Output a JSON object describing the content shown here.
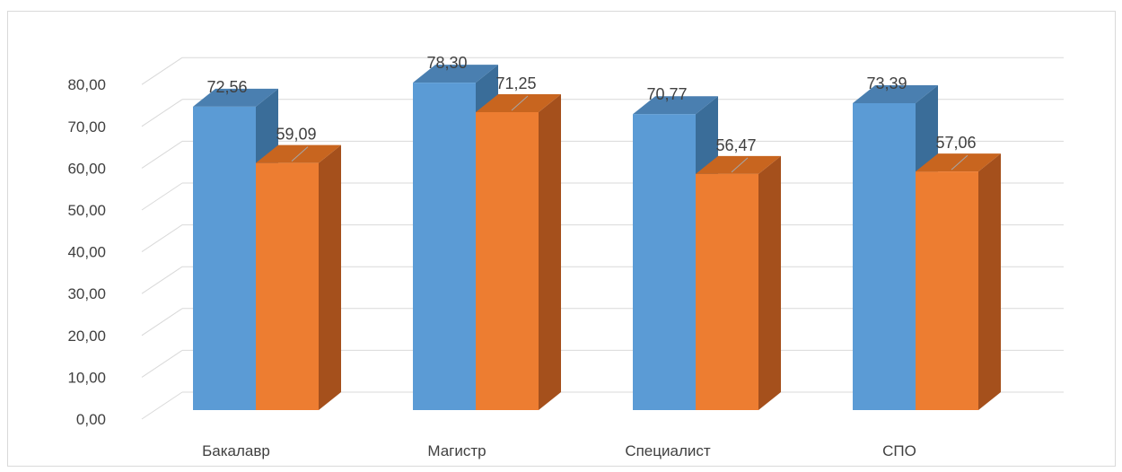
{
  "chart_data": {
    "type": "bar",
    "title": "",
    "xlabel": "",
    "ylabel": "",
    "categories": [
      "Бакалавр",
      "Магистр",
      "Специалист",
      "СПО"
    ],
    "series": [
      {
        "values": [
          72.56,
          78.3,
          70.77,
          73.39
        ],
        "labels": [
          "72,56",
          "78,30",
          "70,77",
          "73,39"
        ],
        "color": "#5b9bd5"
      },
      {
        "values": [
          59.09,
          71.25,
          56.47,
          57.06
        ],
        "labels": [
          "59,09",
          "71,25",
          "56,47",
          "57,06"
        ],
        "color": "#ed7d31"
      }
    ],
    "ylim": [
      0,
      80
    ],
    "yticks": [
      "0,00",
      "10,00",
      "20,00",
      "30,00",
      "40,00",
      "50,00",
      "60,00",
      "70,00",
      "80,00"
    ],
    "grid": true,
    "style": "3d-column"
  }
}
